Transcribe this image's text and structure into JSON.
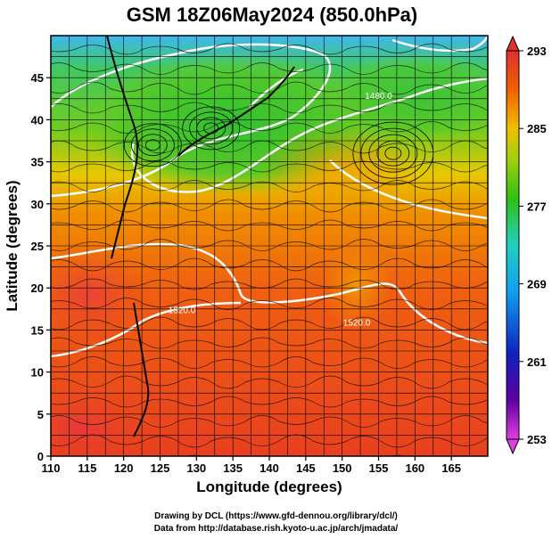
{
  "chart_data": {
    "type": "heatmap",
    "title": "GSM 18Z06May2024 (850.0hPa)",
    "xlabel": "Longitude (degrees)",
    "ylabel": "Latitude  (degrees)",
    "xlim": [
      110,
      170
    ],
    "ylim": [
      0,
      50
    ],
    "x_ticks": [
      110,
      115,
      120,
      125,
      130,
      135,
      140,
      145,
      150,
      155,
      160,
      165
    ],
    "y_ticks": [
      0,
      5,
      10,
      15,
      20,
      25,
      30,
      35,
      40,
      45
    ],
    "grid": true,
    "colorbar": {
      "min": 253,
      "max": 293,
      "tick_values": [
        253,
        261,
        269,
        277,
        285,
        293
      ],
      "tick_labels": [
        "253",
        "261",
        "269",
        "277",
        "285",
        "293"
      ]
    },
    "contours": [
      {
        "label": "1480.0",
        "lon": 155,
        "lat": 42.5
      },
      {
        "label": "1520.0",
        "lon": 128,
        "lat": 17
      },
      {
        "label": "1520.0",
        "lon": 152,
        "lat": 15.5
      }
    ],
    "low_center": [
      {
        "lon": 157,
        "lat": 36
      }
    ]
  },
  "credits": {
    "line1": "Drawing by DCL (https://www.gfd-dennou.org/library/dcl/)",
    "line2": "Data from http://database.rish.kyoto-u.ac.jp/arch/jmadata/"
  }
}
